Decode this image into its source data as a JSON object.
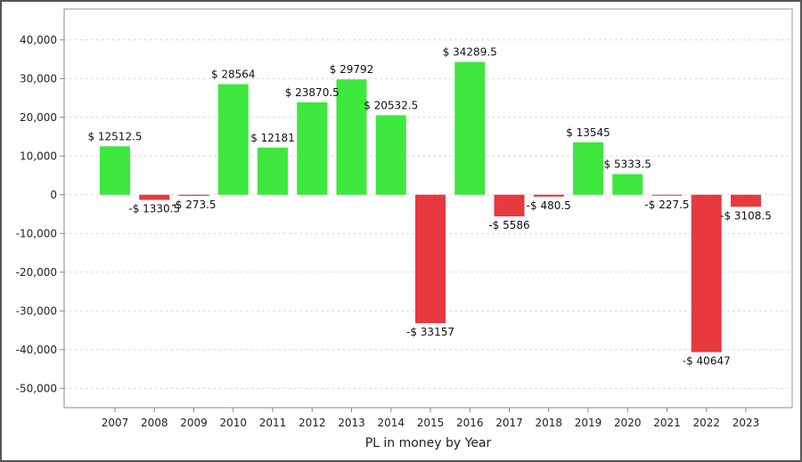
{
  "chart_data": {
    "type": "bar",
    "title": "",
    "xlabel": "PL in money by Year",
    "ylabel": "",
    "ylim": [
      -55000,
      48000
    ],
    "yticks": [
      40000,
      30000,
      20000,
      10000,
      0,
      -10000,
      -20000,
      -30000,
      -40000,
      -50000
    ],
    "ytick_labels": [
      "40,000",
      "30,000",
      "20,000",
      "10,000",
      "0",
      "-10,000",
      "-20,000",
      "-30,000",
      "-40,000",
      "-50,000"
    ],
    "grid": true,
    "legend": "none",
    "categories": [
      "2007",
      "2008",
      "2009",
      "2010",
      "2011",
      "2012",
      "2013",
      "2014",
      "2015",
      "2016",
      "2017",
      "2018",
      "2019",
      "2020",
      "2021",
      "2022",
      "2023"
    ],
    "values": [
      12512.5,
      -1330.5,
      -273.5,
      28564,
      12181,
      23870.5,
      29792,
      20532.5,
      -33157,
      34289.5,
      -5586,
      -480.5,
      13545,
      5333.5,
      -227.5,
      -40647,
      -3108.5
    ],
    "data_labels": [
      "$ 12512.5",
      "-$ 1330.5",
      "-$ 273.5",
      "$ 28564",
      "$ 12181",
      "$ 23870.5",
      "$ 29792",
      "$ 20532.5",
      "-$ 33157",
      "$ 34289.5",
      "-$ 5586",
      "-$ 480.5",
      "$ 13545",
      "$ 5333.5",
      "-$ 227.5",
      "-$ 40647",
      "-$ 3108.5"
    ],
    "colors": {
      "positive": "#3ee83e",
      "negative": "#e8393f",
      "grid": "#d9d9d9",
      "axis": "#888888"
    }
  }
}
